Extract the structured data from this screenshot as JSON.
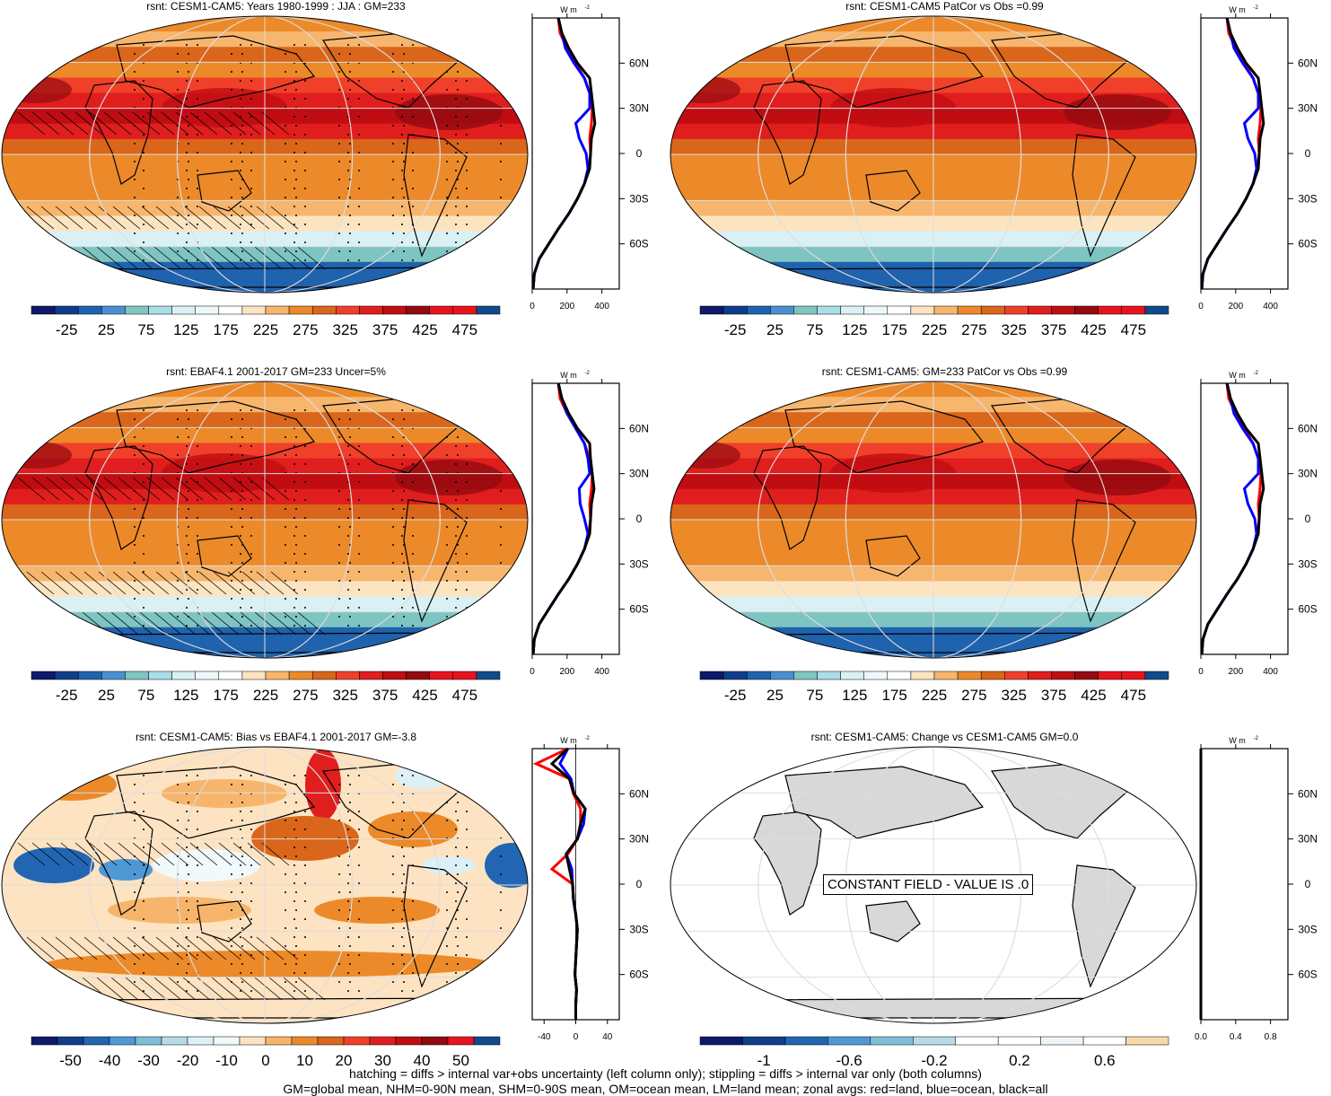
{
  "colors": {
    "land": "#d8d8d8",
    "line_land": "#ff0000",
    "line_ocean": "#0000ff",
    "line_all": "#000000",
    "seq_palette": [
      "#0d1a6b",
      "#0f3d8c",
      "#1f62ad",
      "#4a8fd1",
      "#7ec5c2",
      "#a9dde8",
      "#d9f1f5",
      "#eef7fa",
      "#ffffff",
      "#fde4c1",
      "#f7b66e",
      "#ec8a2a",
      "#d9661a",
      "#f0402a",
      "#e01e1e",
      "#c00d12",
      "#930a0f",
      "#e8141d",
      "#e8141d",
      "#114a8a"
    ],
    "div_palette": [
      "#0d1a6b",
      "#103e8a",
      "#2266b3",
      "#4f98d6",
      "#7fbfd5",
      "#b5dbe6",
      "#dcf0f6",
      "#f2f9fb",
      "#fde3c1",
      "#f7b56c",
      "#ec8a2a",
      "#d9661a",
      "#f0402a",
      "#e01e1e",
      "#c00d12",
      "#930a0f",
      "#e8141d",
      "#114a8a"
    ],
    "const_palette": [
      "#0d1a6b",
      "#103e8a",
      "#2266b3",
      "#4f98d6",
      "#7fbfd5",
      "#b5dbe6",
      "#ffffff",
      "#ffffff",
      "#eef4f7",
      "#ffffff",
      "#f7d8a8"
    ]
  },
  "panels": [
    {
      "id": "p1",
      "title": "rsnt: CESM1-CAM5: Years 1980-1999 : JJA : GM=233",
      "field": "seq",
      "hatch": true,
      "stipple": true,
      "cb_labels": [
        "-25",
        "25",
        "75",
        "125",
        "175",
        "225",
        "275",
        "325",
        "375",
        "425",
        "475"
      ],
      "zonal_xticks": [
        "0",
        "200",
        "400"
      ]
    },
    {
      "id": "p2",
      "title": "rsnt: CESM1-CAM5 PatCor vs Obs =0.99",
      "field": "seq",
      "hatch": false,
      "stipple": false,
      "cb_labels": [
        "-25",
        "25",
        "75",
        "125",
        "175",
        "225",
        "275",
        "325",
        "375",
        "425",
        "475"
      ],
      "zonal_xticks": [
        "0",
        "200",
        "400"
      ]
    },
    {
      "id": "p3",
      "title": "rsnt: EBAF4.1 2001-2017 GM=233 Uncer=5%",
      "field": "seq",
      "hatch": true,
      "stipple": true,
      "cb_labels": [
        "-25",
        "25",
        "75",
        "125",
        "175",
        "225",
        "275",
        "325",
        "375",
        "425",
        "475"
      ],
      "zonal_xticks": [
        "0",
        "200",
        "400"
      ]
    },
    {
      "id": "p4",
      "title": "rsnt: CESM1-CAM5: GM=233 PatCor vs Obs =0.99",
      "field": "seq",
      "hatch": false,
      "stipple": false,
      "cb_labels": [
        "-25",
        "25",
        "75",
        "125",
        "175",
        "225",
        "275",
        "325",
        "375",
        "425",
        "475"
      ],
      "zonal_xticks": [
        "0",
        "200",
        "400"
      ]
    },
    {
      "id": "p5",
      "title": "rsnt: CESM1-CAM5: Bias vs EBAF4.1 2001-2017 GM=-3.8",
      "field": "div",
      "hatch": true,
      "stipple": true,
      "cb_labels": [
        "-50",
        "-40",
        "-30",
        "-20",
        "-10",
        "0",
        "10",
        "20",
        "30",
        "40",
        "50"
      ],
      "zonal_xticks": [
        "-40",
        "0",
        "40"
      ]
    },
    {
      "id": "p6",
      "title": "rsnt: CESM1-CAM5: Change vs CESM1-CAM5 GM=0.0",
      "field": "const",
      "hatch": false,
      "stipple": false,
      "cb_labels": [
        "-1",
        "-0.6",
        "-0.2",
        "0.2",
        "0.6"
      ],
      "zonal_xticks": [
        "0.0",
        "0.4",
        "0.8"
      ],
      "constant_label": "CONSTANT FIELD - VALUE IS .0"
    }
  ],
  "zonal": {
    "unit_label": "W m",
    "unit_sup": "-2",
    "lat_labels": [
      "60N",
      "30N",
      "0",
      "30S",
      "60S"
    ]
  },
  "chart_data": [
    {
      "type": "line",
      "title": "rsnt: CESM1-CAM5: Years 1980-1999 : JJA : GM=233",
      "lat": [
        -90,
        -80,
        -70,
        -60,
        -50,
        -40,
        -30,
        -20,
        -10,
        0,
        10,
        20,
        30,
        40,
        50,
        60,
        70,
        80,
        90
      ],
      "series": [
        {
          "values": [
            5,
            12,
            40,
            95,
            150,
            210,
            260,
            300,
            325,
            335,
            330,
            340,
            345,
            330,
            300,
            250,
            200,
            160,
            150
          ]
        },
        {
          "values": [
            5,
            12,
            40,
            95,
            150,
            210,
            260,
            300,
            320,
            310,
            270,
            250,
            330,
            330,
            300,
            240,
            190,
            170,
            150
          ]
        },
        {
          "values": [
            5,
            12,
            40,
            95,
            150,
            210,
            260,
            300,
            330,
            335,
            340,
            360,
            350,
            340,
            330,
            260,
            210,
            170,
            150
          ]
        }
      ],
      "xlim": [
        0,
        500
      ]
    },
    {
      "type": "line",
      "title": "rsnt: CESM1-CAM5 PatCor vs Obs =0.99",
      "lat": [
        -90,
        -80,
        -70,
        -60,
        -50,
        -40,
        -30,
        -20,
        -10,
        0,
        10,
        20,
        30,
        40,
        50,
        60,
        70,
        80,
        90
      ],
      "series": [
        {
          "values": [
            5,
            12,
            40,
            95,
            150,
            210,
            260,
            300,
            325,
            335,
            330,
            340,
            345,
            330,
            300,
            250,
            200,
            160,
            150
          ]
        },
        {
          "values": [
            5,
            12,
            40,
            95,
            150,
            210,
            260,
            300,
            320,
            310,
            270,
            250,
            330,
            330,
            300,
            240,
            190,
            170,
            150
          ]
        },
        {
          "values": [
            5,
            12,
            40,
            95,
            150,
            210,
            260,
            300,
            330,
            335,
            340,
            360,
            350,
            340,
            330,
            260,
            210,
            170,
            150
          ]
        }
      ],
      "xlim": [
        0,
        500
      ]
    },
    {
      "type": "line",
      "title": "rsnt: EBAF4.1 2001-2017 GM=233 Uncer=5%",
      "lat": [
        -90,
        -80,
        -70,
        -60,
        -50,
        -40,
        -30,
        -20,
        -10,
        0,
        10,
        20,
        30,
        40,
        50,
        60,
        70,
        80,
        90
      ],
      "series": [
        {
          "values": [
            5,
            12,
            40,
            95,
            150,
            210,
            260,
            300,
            325,
            335,
            330,
            340,
            345,
            330,
            300,
            250,
            200,
            160,
            150
          ]
        },
        {
          "values": [
            5,
            12,
            40,
            95,
            150,
            210,
            260,
            300,
            320,
            300,
            275,
            270,
            330,
            320,
            300,
            250,
            200,
            170,
            150
          ]
        },
        {
          "values": [
            5,
            12,
            40,
            95,
            150,
            210,
            260,
            300,
            330,
            335,
            340,
            355,
            345,
            335,
            330,
            260,
            210,
            170,
            150
          ]
        }
      ],
      "xlim": [
        0,
        500
      ]
    },
    {
      "type": "line",
      "title": "rsnt: CESM1-CAM5: GM=233 PatCor vs Obs =0.99",
      "lat": [
        -90,
        -80,
        -70,
        -60,
        -50,
        -40,
        -30,
        -20,
        -10,
        0,
        10,
        20,
        30,
        40,
        50,
        60,
        70,
        80,
        90
      ],
      "series": [
        {
          "values": [
            5,
            12,
            40,
            95,
            150,
            210,
            260,
            300,
            325,
            335,
            330,
            340,
            345,
            330,
            300,
            250,
            200,
            160,
            150
          ]
        },
        {
          "values": [
            5,
            12,
            40,
            95,
            150,
            210,
            260,
            300,
            320,
            310,
            270,
            250,
            330,
            330,
            300,
            240,
            190,
            170,
            150
          ]
        },
        {
          "values": [
            5,
            12,
            40,
            95,
            150,
            210,
            260,
            300,
            330,
            335,
            340,
            360,
            350,
            340,
            330,
            260,
            210,
            170,
            150
          ]
        }
      ],
      "xlim": [
        0,
        500
      ]
    },
    {
      "type": "line",
      "title": "rsnt: CESM1-CAM5: Bias vs EBAF4.1 2001-2017 GM=-3.8",
      "lat": [
        -90,
        -80,
        -70,
        -60,
        -50,
        -40,
        -30,
        -20,
        -10,
        0,
        10,
        20,
        30,
        40,
        50,
        60,
        70,
        80,
        90
      ],
      "series": [
        {
          "values": [
            0,
            0,
            1,
            -1,
            0,
            1,
            2,
            0,
            -3,
            -4,
            -30,
            -10,
            2,
            6,
            6,
            -3,
            -8,
            -50,
            -10
          ]
        },
        {
          "values": [
            0,
            0,
            1,
            -1,
            0,
            1,
            2,
            0,
            -3,
            -4,
            -5,
            -12,
            2,
            10,
            12,
            -2,
            -6,
            -20,
            -10
          ]
        },
        {
          "values": [
            0,
            0,
            1,
            -1,
            0,
            1,
            2,
            0,
            -3,
            -4,
            -8,
            -12,
            2,
            6,
            12,
            -2,
            -8,
            -30,
            -10
          ]
        }
      ],
      "xlim": [
        -55,
        55
      ]
    },
    {
      "type": "line",
      "title": "rsnt: CESM1-CAM5: Change vs CESM1-CAM5 GM=0.0",
      "lat": [
        -90,
        90
      ],
      "series": [
        {
          "values": [
            0,
            0
          ]
        },
        {
          "values": [
            0,
            0
          ]
        },
        {
          "values": [
            0,
            0
          ]
        }
      ],
      "xlim": [
        0,
        1
      ]
    }
  ],
  "footer": {
    "line1": "hatching = diffs > internal var+obs uncertainty (left column only); stippling = diffs > internal var only (both columns)",
    "line2": "GM=global mean, NHM=0-90N mean, SHM=0-90S mean, OM=ocean mean, LM=land mean; zonal avgs: red=land, blue=ocean, black=all"
  }
}
